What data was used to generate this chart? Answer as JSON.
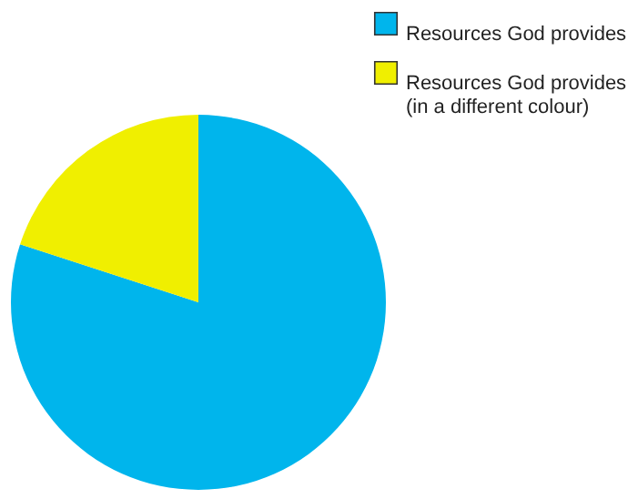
{
  "chart_data": {
    "type": "pie",
    "categories": [
      "Resources God provides",
      "Resources God provides\n(in a different colour)"
    ],
    "values": [
      80,
      20
    ],
    "colors": [
      "#00b5ec",
      "#f0ef00"
    ],
    "legend": "top right"
  }
}
